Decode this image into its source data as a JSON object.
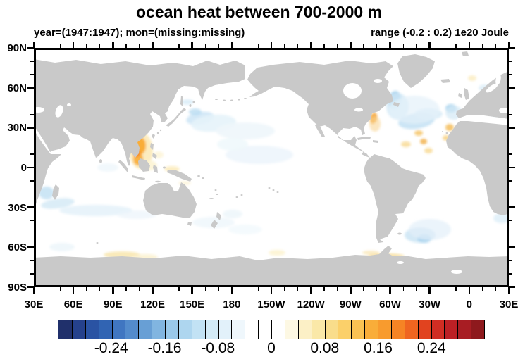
{
  "title": "ocean heat between 700-2000 m",
  "subtitle_left": "year=(1947:1947); mon=(missing:missing)",
  "subtitle_right": "range (-0.2 : 0.2) 1e20 Joule",
  "axes": {
    "lat_labels": [
      "90N",
      "60N",
      "30N",
      "0",
      "30S",
      "60S",
      "90S"
    ],
    "lon_labels": [
      "30E",
      "60E",
      "90E",
      "120E",
      "150E",
      "180",
      "150W",
      "120W",
      "90W",
      "60W",
      "30W",
      "0",
      "30E"
    ],
    "minor_ticks_per_major": 2
  },
  "map": {
    "land_color": "#c9c9c9",
    "ocean_color": "#ffffff",
    "anomaly_blobs": [
      [
        152,
        146,
        17,
        26,
        0,
        "#fce9b4",
        0.85
      ],
      [
        150,
        139,
        9,
        13,
        0,
        "#f9ad39",
        1
      ],
      [
        148,
        158,
        7,
        9,
        0,
        "#f9ad39",
        0.9
      ],
      [
        146,
        149,
        5,
        6,
        0,
        "#f68424",
        0.9
      ],
      [
        163,
        167,
        12,
        7,
        0,
        "#fdf4d4",
        0.9
      ],
      [
        177,
        152,
        7,
        5,
        0,
        "#fdf4d4",
        0.8
      ],
      [
        196,
        172,
        11,
        4,
        0,
        "#fbeab5",
        0.8
      ],
      [
        214,
        192,
        9,
        3,
        0,
        "#fdf4d8",
        0.8
      ],
      [
        236,
        100,
        20,
        9,
        -10,
        "#cfe7f6",
        0.9
      ],
      [
        229,
        91,
        9,
        5,
        0,
        "#b9dcf1",
        0.8
      ],
      [
        255,
        107,
        32,
        12,
        -5,
        "#e6f3fa",
        0.9
      ],
      [
        300,
        118,
        42,
        12,
        0,
        "#eef6fb",
        0.9
      ],
      [
        320,
        152,
        48,
        13,
        0,
        "#ecf5fb",
        0.85
      ],
      [
        282,
        137,
        22,
        9,
        0,
        "#f0f8fc",
        0.9
      ],
      [
        218,
        77,
        9,
        4,
        0,
        "#d8ecf7",
        0.8
      ],
      [
        105,
        170,
        15,
        6,
        0,
        "#eef6fb",
        0.8
      ],
      [
        18,
        206,
        11,
        9,
        0,
        "#c6e3f4",
        0.9
      ],
      [
        34,
        221,
        24,
        7,
        -8,
        "#d5eaf6",
        0.85
      ],
      [
        88,
        231,
        52,
        8,
        0,
        "#e4f1f9",
        0.85
      ],
      [
        146,
        237,
        28,
        6,
        0,
        "#edf5fb",
        0.8
      ],
      [
        255,
        248,
        30,
        8,
        0,
        "#ecf5fb",
        0.75
      ],
      [
        300,
        258,
        24,
        7,
        0,
        "#f0f8fc",
        0.75
      ],
      [
        282,
        236,
        14,
        6,
        0,
        "#eaf4fa",
        0.75
      ],
      [
        512,
        74,
        9,
        13,
        10,
        "#a5d2ed",
        0.9
      ],
      [
        516,
        83,
        16,
        19,
        0,
        "#cfe7f6",
        0.75
      ],
      [
        543,
        104,
        26,
        11,
        -8,
        "#c2e1f3",
        0.85
      ],
      [
        560,
        94,
        20,
        8,
        0,
        "#d5eaf6",
        0.8
      ],
      [
        540,
        88,
        36,
        20,
        0,
        "#e4f1f9",
        0.7
      ],
      [
        482,
        100,
        5,
        8,
        15,
        "#f4a73c",
        0.95
      ],
      [
        484,
        108,
        8,
        11,
        0,
        "#f8d694",
        0.6
      ],
      [
        546,
        121,
        6,
        4,
        0,
        "#f6c76d",
        0.85
      ],
      [
        553,
        133,
        5,
        4,
        0,
        "#f2b14e",
        0.85
      ],
      [
        528,
        137,
        7,
        4,
        0,
        "#f8d88f",
        0.8
      ],
      [
        560,
        146,
        6,
        4,
        0,
        "#f8d88f",
        0.8
      ],
      [
        590,
        113,
        6,
        5,
        0,
        "#f4bd5c",
        0.85
      ],
      [
        585,
        128,
        5,
        4,
        0,
        "#f7cf7d",
        0.8
      ],
      [
        592,
        86,
        8,
        6,
        0,
        "#a9d4ee",
        0.9
      ],
      [
        596,
        92,
        12,
        10,
        0,
        "#d5eaf6",
        0.75
      ],
      [
        640,
        57,
        9,
        5,
        0,
        "#dceef8",
        0.8
      ],
      [
        622,
        43,
        6,
        4,
        0,
        "#fbe9b6",
        0.7
      ],
      [
        658,
        99,
        10,
        4,
        0,
        "#cde7f5",
        0.85
      ],
      [
        669,
        112,
        7,
        4,
        0,
        "#dceef8",
        0.8
      ],
      [
        548,
        266,
        22,
        11,
        0,
        "#cbe5f5",
        0.85
      ],
      [
        554,
        271,
        10,
        6,
        0,
        "#a9d4ee",
        0.85
      ],
      [
        562,
        258,
        30,
        15,
        0,
        "#e2f0f9",
        0.7
      ],
      [
        664,
        242,
        12,
        7,
        0,
        "#dceef8",
        0.8
      ],
      [
        500,
        296,
        26,
        4,
        0,
        "#f7e0a2",
        0.9
      ],
      [
        478,
        291,
        12,
        3,
        0,
        "#fae9bb",
        0.85
      ],
      [
        125,
        294,
        26,
        5,
        0,
        "#f8e6ae",
        0.85
      ],
      [
        158,
        297,
        18,
        4,
        0,
        "#fbf0cc",
        0.8
      ],
      [
        345,
        291,
        12,
        4,
        0,
        "#fdf2cc",
        0.8
      ],
      [
        40,
        283,
        18,
        6,
        0,
        "#e8f3fa",
        0.7
      ]
    ]
  },
  "colorbar": {
    "labels": [
      "-0.24",
      "-0.16",
      "-0.08",
      "0",
      "0.08",
      "0.16",
      "0.24"
    ],
    "label_boundary_indices": [
      4,
      8,
      12,
      16,
      20,
      24,
      28
    ],
    "box_count": 32,
    "colors": [
      "#20306b",
      "#25418c",
      "#2a53a3",
      "#3164b3",
      "#4076c1",
      "#538bcc",
      "#689fd5",
      "#81b5e0",
      "#9ac9ea",
      "#aed6ef",
      "#c2e2f4",
      "#d3ebf7",
      "#e2f1fa",
      "#eff7fc",
      "#ffffff",
      "#ffffff",
      "#ffffff",
      "#fdf8e3",
      "#fcf0c6",
      "#fae8a8",
      "#f9dd8b",
      "#fbd06a",
      "#fac253",
      "#f9ad39",
      "#f89b2e",
      "#f68424",
      "#ef6520",
      "#e1431f",
      "#d02d23",
      "#bc2025",
      "#a81d23",
      "#8e191d"
    ]
  },
  "chart_data": {
    "type": "heatmap",
    "title": "ocean heat between 700-2000 m",
    "subtitle_left": "year=(1947:1947); mon=(missing:missing)",
    "subtitle_right": "range (-0.2 : 0.2) 1e20 Joule",
    "units": "1e20 Joule",
    "value_range": [
      -0.2,
      0.2
    ],
    "projection": "equirectangular, Pacific-centered (left edge 30E)",
    "lon_ticks": [
      "30E",
      "60E",
      "90E",
      "120E",
      "150E",
      "180",
      "150W",
      "120W",
      "90W",
      "60W",
      "30W",
      "0",
      "30E"
    ],
    "lat_ticks": [
      "90N",
      "60N",
      "30N",
      "0",
      "30S",
      "60S",
      "90S"
    ],
    "colorbar_levels": {
      "min": -0.3,
      "max": 0.3,
      "step": 0.02
    },
    "colorbar_tick_labels": [
      -0.24,
      -0.16,
      -0.08,
      0,
      0.08,
      0.16,
      0.24
    ],
    "land_color": "#c9c9c9",
    "ocean_background": "#ffffff",
    "features": [
      {
        "region": "South China Sea / west of Philippines (105E-120E, 5N-22N)",
        "sign": "positive",
        "approx_value": "+0.08 to +0.16"
      },
      {
        "region": "Seas around Indonesia / north of New Guinea",
        "sign": "positive",
        "approx_value": "+0.02 to +0.04"
      },
      {
        "region": "East of Japan, Kuroshio extension (~35-45N)",
        "sign": "negative",
        "approx_value": "-0.02 to -0.06"
      },
      {
        "region": "Central North Pacific (~30-45N)",
        "sign": "negative",
        "approx_value": "-0.01 to -0.02"
      },
      {
        "region": "Labrador Sea and subpolar North Atlantic (~50-58N, 45-35W)",
        "sign": "negative",
        "approx_value": "-0.06 to -0.12"
      },
      {
        "region": "North Atlantic ~40N, 45W-15W",
        "sign": "negative",
        "approx_value": "-0.04 to -0.08"
      },
      {
        "region": "US East Coast shelf (~38N, 65W)",
        "sign": "positive",
        "approx_value": "+0.08 to +0.12"
      },
      {
        "region": "West of Iberia (~45N, 15W)",
        "sign": "negative",
        "approx_value": "-0.06"
      },
      {
        "region": "Scattered positive specks along NW African / Iberian margin",
        "sign": "positive",
        "approx_value": "+0.04"
      },
      {
        "region": "Mediterranean near right edge",
        "sign": "negative",
        "approx_value": "-0.02"
      },
      {
        "region": "Mozambique Channel / S Indian Ocean band (~30-40S)",
        "sign": "negative",
        "approx_value": "-0.02 to -0.06"
      },
      {
        "region": "Southwest Atlantic east of Argentina (~40-50S)",
        "sign": "negative",
        "approx_value": "-0.04 to -0.08"
      },
      {
        "region": "Antarctic margin, Indian and Atlantic sectors",
        "sign": "positive",
        "approx_value": "+0.02 to +0.04"
      },
      {
        "region": "Rest of global ocean",
        "sign": "neutral",
        "approx_value": "~0 (white)"
      }
    ]
  }
}
